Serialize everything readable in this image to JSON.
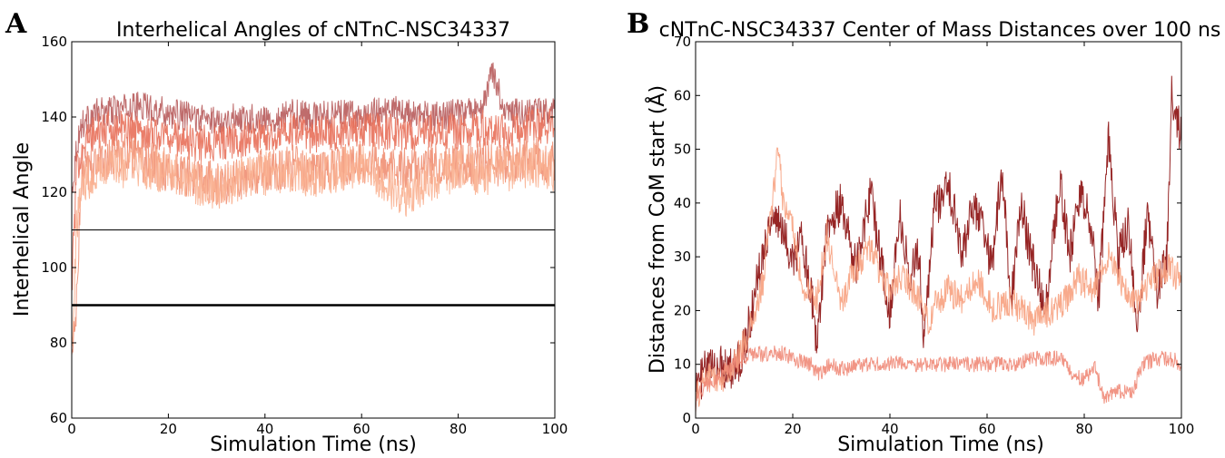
{
  "chart_data": [
    {
      "panel_label": "A",
      "type": "line",
      "title": "Interhelical Angles of cNTnC-NSC34337",
      "xlabel": "Simulation Time (ns)",
      "ylabel": "Interhelical Angle",
      "xlim": [
        0,
        100
      ],
      "ylim": [
        60,
        160
      ],
      "xticks": [
        0,
        20,
        40,
        60,
        80,
        100
      ],
      "yticks": [
        60,
        80,
        100,
        120,
        140,
        160
      ],
      "grid": false,
      "reference_lines": [
        {
          "y": 110,
          "style": "thin",
          "color": "#000000"
        },
        {
          "y": 90,
          "style": "thick",
          "color": "#000000"
        }
      ],
      "series": [
        {
          "color": "#b85c5c",
          "x": [
            0,
            1,
            2,
            5,
            10,
            15,
            20,
            25,
            30,
            35,
            40,
            45,
            50,
            55,
            60,
            65,
            70,
            75,
            80,
            85,
            87,
            90,
            95,
            100
          ],
          "y": [
            120,
            132,
            138,
            141,
            142,
            143,
            141,
            140,
            139,
            140,
            139,
            141,
            140,
            141,
            140,
            142,
            141,
            140,
            141,
            142,
            152,
            141,
            141,
            142
          ],
          "noise": 4
        },
        {
          "color": "#e8705a",
          "x": [
            0,
            1,
            2,
            5,
            10,
            15,
            20,
            25,
            30,
            35,
            40,
            45,
            50,
            55,
            60,
            65,
            70,
            75,
            80,
            85,
            90,
            95,
            100
          ],
          "y": [
            95,
            125,
            132,
            136,
            137,
            136,
            135,
            133,
            133,
            134,
            135,
            136,
            135,
            136,
            137,
            136,
            135,
            137,
            136,
            137,
            136,
            138,
            137
          ],
          "noise": 5
        },
        {
          "color": "#f08f73",
          "x": [
            0,
            1,
            2,
            5,
            10,
            15,
            20,
            25,
            30,
            35,
            40,
            45,
            50,
            55,
            60,
            65,
            70,
            75,
            80,
            85,
            90,
            95,
            100
          ],
          "y": [
            75,
            90,
            124,
            128,
            130,
            128,
            126,
            124,
            122,
            124,
            126,
            127,
            125,
            127,
            128,
            127,
            126,
            128,
            127,
            128,
            127,
            129,
            128
          ],
          "noise": 6
        },
        {
          "color": "#f9b090",
          "x": [
            0,
            1,
            2,
            5,
            10,
            15,
            20,
            25,
            30,
            35,
            40,
            45,
            50,
            55,
            60,
            65,
            70,
            75,
            80,
            85,
            90,
            95,
            100
          ],
          "y": [
            80,
            110,
            122,
            126,
            127,
            126,
            125,
            123,
            121,
            123,
            125,
            126,
            124,
            126,
            127,
            122,
            119,
            124,
            126,
            125,
            126,
            127,
            126
          ],
          "noise": 6
        }
      ]
    },
    {
      "panel_label": "B",
      "type": "line",
      "title": "cNTnC-NSC34337 Center of Mass Distances over 100 ns",
      "xlabel": "Simulation Time (ns)",
      "ylabel": "Distances from CoM start (Å)",
      "xlim": [
        0,
        100
      ],
      "ylim": [
        0,
        70
      ],
      "xticks": [
        0,
        20,
        40,
        60,
        80,
        100
      ],
      "yticks": [
        0,
        10,
        20,
        30,
        40,
        50,
        60,
        70
      ],
      "grid": false,
      "series": [
        {
          "color": "#8b0d0d",
          "x": [
            0,
            2,
            5,
            8,
            10,
            12,
            14,
            16,
            18,
            20,
            22,
            24,
            25,
            27,
            30,
            33,
            36,
            38,
            40,
            42,
            44,
            46,
            47,
            49,
            52,
            55,
            57,
            59,
            61,
            63,
            65,
            67,
            69,
            72,
            75,
            77,
            79,
            81,
            83,
            85,
            87,
            89,
            91,
            93,
            95,
            97,
            98,
            100
          ],
          "y": [
            5,
            9,
            10,
            9,
            13,
            22,
            32,
            38,
            34,
            30,
            33,
            22,
            13,
            36,
            40,
            28,
            42,
            30,
            20,
            38,
            26,
            32,
            14,
            38,
            44,
            30,
            40,
            36,
            28,
            46,
            22,
            40,
            30,
            20,
            44,
            30,
            42,
            38,
            22,
            52,
            30,
            36,
            18,
            38,
            24,
            30,
            60,
            52
          ],
          "noise": 4
        },
        {
          "color": "#f7a17f",
          "x": [
            0,
            2,
            5,
            8,
            10,
            12,
            14,
            16,
            17,
            18,
            20,
            22,
            25,
            27,
            30,
            33,
            36,
            39,
            42,
            45,
            48,
            50,
            52,
            55,
            58,
            61,
            64,
            67,
            70,
            73,
            76,
            79,
            82,
            85,
            88,
            91,
            94,
            97,
            100
          ],
          "y": [
            3,
            8,
            7,
            10,
            14,
            18,
            26,
            42,
            50,
            40,
            36,
            24,
            22,
            34,
            22,
            28,
            32,
            24,
            26,
            24,
            18,
            22,
            24,
            22,
            26,
            20,
            22,
            20,
            18,
            20,
            22,
            26,
            24,
            30,
            24,
            22,
            26,
            28,
            26
          ],
          "noise": 3
        },
        {
          "color": "#ef8a78",
          "x": [
            0,
            2,
            5,
            8,
            10,
            12,
            15,
            18,
            20,
            24,
            25,
            28,
            30,
            35,
            40,
            45,
            50,
            55,
            60,
            65,
            70,
            75,
            78,
            80,
            82,
            84,
            86,
            90,
            92,
            95,
            98,
            100
          ],
          "y": [
            4,
            6,
            8,
            10,
            11,
            12,
            12,
            12,
            11,
            10,
            8,
            10,
            9,
            10,
            10,
            10,
            10,
            10,
            10,
            10,
            11,
            11,
            8,
            7,
            10,
            4,
            5,
            5,
            10,
            11,
            11,
            10
          ],
          "noise": 1.5
        }
      ]
    }
  ]
}
